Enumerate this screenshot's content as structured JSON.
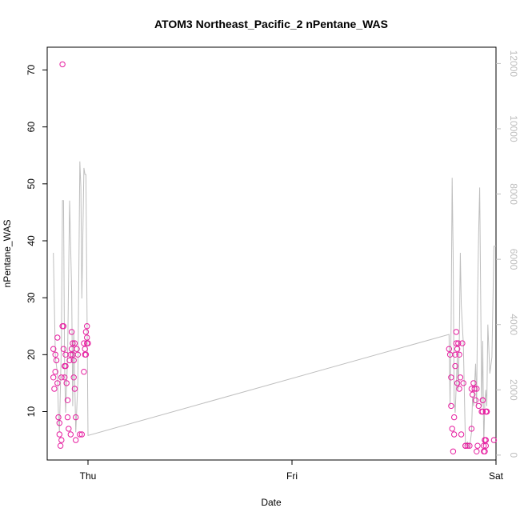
{
  "chart_data": {
    "type": "scatter",
    "title": "ATOM3 Northeast_Pacific_2 nPentane_WAS",
    "xlabel": "Date",
    "ylabel": "nPentane_WAS",
    "x_ticks": [
      "Thu",
      "Fri",
      "Sat"
    ],
    "y_ticks": [
      "10",
      "20",
      "30",
      "40",
      "50",
      "60",
      "70"
    ],
    "y2_ticks": [
      "0",
      "2000",
      "4000",
      "6000",
      "8000",
      "10000",
      "12000"
    ],
    "x_range_days": [
      -0.2,
      2.0
    ],
    "ylim": [
      1.5,
      74
    ],
    "y2lim": [
      -150,
      12500
    ],
    "grid": false,
    "colors": {
      "points": "#e61ea0",
      "line": "#bebebe",
      "axis": "#000000",
      "right_axis": "#bdbdbd"
    },
    "series": [
      {
        "kind": "points",
        "x_days": [
          -0.17,
          -0.17,
          -0.165,
          -0.16,
          -0.16,
          -0.155,
          -0.15,
          -0.15,
          -0.145,
          -0.14,
          -0.14,
          -0.135,
          -0.13,
          -0.13,
          -0.125,
          -0.125,
          -0.12,
          -0.12,
          -0.115,
          -0.115,
          -0.11,
          -0.11,
          -0.105,
          -0.1,
          -0.1,
          -0.095,
          -0.09,
          -0.085,
          -0.085,
          -0.08,
          -0.08,
          -0.075,
          -0.075,
          -0.07,
          -0.07,
          -0.065,
          -0.065,
          -0.06,
          -0.06,
          -0.055,
          -0.05,
          -0.04,
          -0.03,
          -0.02,
          -0.02,
          -0.015,
          -0.015,
          -0.01,
          -0.01,
          -0.005,
          -0.005,
          -0.005,
          0.0,
          1.77,
          1.775,
          1.78,
          1.78,
          1.785,
          1.79,
          1.795,
          1.795,
          1.8,
          1.8,
          1.805,
          1.805,
          1.81,
          1.81,
          1.815,
          1.82,
          1.82,
          1.825,
          1.83,
          1.835,
          1.84,
          1.85,
          1.85,
          1.86,
          1.87,
          1.88,
          1.88,
          1.885,
          1.89,
          1.895,
          1.9,
          1.905,
          1.905,
          1.91,
          1.915,
          1.93,
          1.935,
          1.935,
          1.935,
          1.94,
          1.94,
          1.945,
          1.945,
          1.945,
          1.95,
          1.95,
          1.95,
          1.955,
          1.955,
          1.99
        ],
        "y": [
          21,
          16,
          14,
          20,
          17,
          19,
          23,
          15,
          9,
          8,
          6,
          4,
          5,
          16,
          71,
          25,
          25,
          21,
          18,
          16,
          18,
          20,
          15,
          12,
          9,
          7,
          19,
          20,
          6,
          24,
          21,
          22,
          20,
          19,
          16,
          22,
          14,
          9,
          5,
          21,
          20,
          6,
          6,
          22,
          17,
          21,
          20,
          24,
          20,
          25,
          22,
          23,
          22,
          21,
          20,
          16,
          11,
          7,
          3,
          9,
          6,
          18,
          20,
          24,
          22,
          21,
          15,
          22,
          14,
          20,
          16,
          6,
          22,
          15,
          4,
          4,
          4,
          4,
          7,
          14,
          13,
          15,
          14,
          12,
          14,
          3,
          4,
          11,
          10,
          12,
          10,
          12,
          3,
          4,
          5,
          3,
          5,
          10,
          4,
          5,
          10,
          10,
          5
        ]
      },
      {
        "kind": "line",
        "axis": "right",
        "x_days": [
          -0.17,
          -0.16,
          -0.15,
          -0.145,
          -0.14,
          -0.13,
          -0.125,
          -0.12,
          -0.115,
          -0.11,
          -0.1,
          -0.09,
          -0.08,
          -0.075,
          -0.07,
          -0.06,
          -0.05,
          -0.04,
          -0.035,
          -0.03,
          -0.02,
          -0.015,
          -0.01,
          0.0,
          1.77,
          1.775,
          1.78,
          1.785,
          1.79,
          1.795,
          1.8,
          1.81,
          1.815,
          1.82,
          1.825,
          1.83,
          1.84,
          1.85,
          1.86,
          1.87,
          1.88,
          1.885,
          1.89,
          1.9,
          1.905,
          1.91,
          1.915,
          1.92,
          1.93,
          1.935,
          1.94,
          1.945,
          1.95,
          1.955,
          1.96,
          1.97,
          1.98,
          1.99,
          2.0
        ],
        "y": [
          6200,
          3000,
          2500,
          1300,
          700,
          3500,
          7800,
          7800,
          2800,
          1300,
          3000,
          7800,
          5000,
          1500,
          3800,
          700,
          2200,
          9000,
          8200,
          4800,
          8800,
          8600,
          8600,
          600,
          3700,
          1500,
          4000,
          8500,
          6200,
          1700,
          1300,
          3000,
          2000,
          3500,
          6200,
          4600,
          3400,
          300,
          400,
          200,
          700,
          1800,
          1500,
          2800,
          1500,
          4800,
          6800,
          8200,
          1500,
          3500,
          300,
          1600,
          2000,
          1500,
          4000,
          2500,
          3000,
          6400,
          6400
        ]
      }
    ]
  }
}
